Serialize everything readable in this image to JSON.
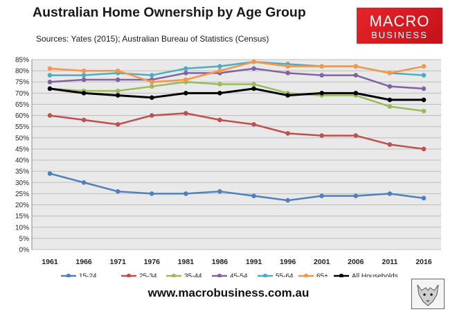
{
  "title": "Australian Home Ownership by Age Group",
  "subtitle": "Sources: Yates (2015); Australian Bureau of Statistics (Census)",
  "logo": {
    "line1": "MACRO",
    "line2": "BUSINESS"
  },
  "footer_url": "www.macrobusiness.com.au",
  "colors": {
    "plot_bg": "#e9e9e9",
    "grid": "#bdbdbd",
    "logo_red": "#e0161f"
  },
  "chart_data": {
    "type": "line",
    "categories": [
      "1961",
      "1966",
      "1971",
      "1976",
      "1981",
      "1986",
      "1991",
      "1996",
      "2001",
      "2006",
      "2011",
      "2016"
    ],
    "ylim": [
      0,
      85
    ],
    "yticks": [
      0,
      5,
      10,
      15,
      20,
      25,
      30,
      35,
      40,
      45,
      50,
      55,
      60,
      65,
      70,
      75,
      80,
      85
    ],
    "ytick_suffix": "%",
    "grid": true,
    "legend": "bottom",
    "series": [
      {
        "name": "15-24",
        "color": "#4f7fbf",
        "values": [
          34,
          30,
          26,
          25,
          25,
          26,
          24,
          22,
          24,
          24,
          25,
          23
        ]
      },
      {
        "name": "25-34",
        "color": "#c0504d",
        "values": [
          60,
          58,
          56,
          60,
          61,
          58,
          56,
          52,
          51,
          51,
          47,
          45
        ]
      },
      {
        "name": "35-44",
        "color": "#9bbb59",
        "values": [
          72,
          71,
          71,
          73,
          75,
          74,
          74,
          70,
          69,
          69,
          64,
          62
        ]
      },
      {
        "name": "45-54",
        "color": "#8064a2",
        "values": [
          75,
          76,
          76,
          76,
          79,
          79,
          81,
          79,
          78,
          78,
          73,
          72
        ]
      },
      {
        "name": "55-64",
        "color": "#4bacc6",
        "values": [
          78,
          78,
          79,
          78,
          81,
          82,
          84,
          83,
          82,
          82,
          79,
          78
        ]
      },
      {
        "name": "65+",
        "color": "#f79646",
        "values": [
          81,
          80,
          80,
          75,
          76,
          80,
          84,
          82,
          82,
          82,
          79,
          82
        ]
      },
      {
        "name": "All Households",
        "color": "#000000",
        "values": [
          72,
          70,
          69,
          68,
          70,
          70,
          72,
          69,
          70,
          70,
          67,
          67
        ]
      }
    ]
  }
}
